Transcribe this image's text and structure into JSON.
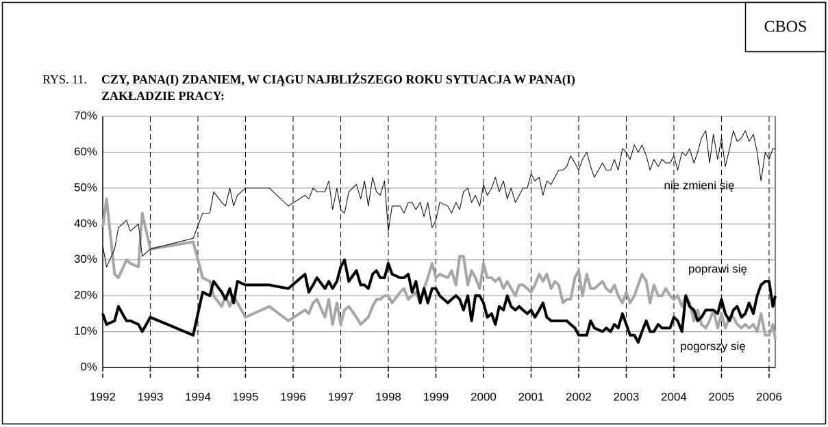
{
  "header": "CBOS",
  "chart_data": {
    "type": "line",
    "figure_label": "RYS. 11.",
    "title": [
      "CZY, PANA(I) ZDANIEM, W CIĄGU NAJBLIŻSZEGO ROKU SYTUACJA W PANA(I)",
      "ZAKŁADZIE PRACY:"
    ],
    "x": [
      1992,
      1992.08,
      1992.25,
      1992.33,
      1992.5,
      1992.58,
      1992.75,
      1992.83,
      1993,
      1993.9,
      1994.1,
      1994.25,
      1994.33,
      1994.5,
      1994.58,
      1994.67,
      1994.75,
      1994.83,
      1995,
      1995.5,
      1995.9,
      1996.25,
      1996.33,
      1996.42,
      1996.5,
      1996.67,
      1996.75,
      1996.83,
      1996.92,
      1997,
      1997.08,
      1997.17,
      1997.33,
      1997.42,
      1997.5,
      1997.58,
      1997.67,
      1997.75,
      1997.83,
      1997.92,
      1998,
      1998.08,
      1998.25,
      1998.33,
      1998.42,
      1998.5,
      1998.58,
      1998.67,
      1998.75,
      1998.83,
      1998.92,
      1999,
      1999.08,
      1999.25,
      1999.33,
      1999.42,
      1999.5,
      1999.58,
      1999.67,
      1999.75,
      1999.83,
      1999.92,
      2000,
      2000.08,
      2000.17,
      2000.25,
      2000.33,
      2000.42,
      2000.5,
      2000.58,
      2000.67,
      2000.75,
      2000.83,
      2000.92,
      2001,
      2001.08,
      2001.17,
      2001.25,
      2001.33,
      2001.42,
      2001.5,
      2001.58,
      2001.67,
      2001.75,
      2001.83,
      2001.92,
      2002,
      2002.08,
      2002.17,
      2002.25,
      2002.33,
      2002.5,
      2002.58,
      2002.67,
      2002.75,
      2002.83,
      2002.92,
      2003,
      2003.08,
      2003.17,
      2003.25,
      2003.33,
      2003.42,
      2003.5,
      2003.58,
      2003.67,
      2003.75,
      2003.83,
      2003.92,
      2004,
      2004.08,
      2004.17,
      2004.25,
      2004.33,
      2004.42,
      2004.5,
      2004.58,
      2004.67,
      2004.75,
      2004.83,
      2004.92,
      2005,
      2005.08,
      2005.17,
      2005.25,
      2005.33,
      2005.42,
      2005.5,
      2005.58,
      2005.67,
      2005.75,
      2005.83,
      2005.92,
      2006,
      2006.08,
      2006.13
    ],
    "series": [
      {
        "name": "nie zmieni się",
        "color": "#000000",
        "width": 1,
        "values": [
          34,
          28,
          33,
          39,
          41,
          38,
          40,
          31,
          33,
          36,
          43,
          43,
          49,
          46,
          45,
          50,
          45,
          48,
          50,
          50,
          45,
          48,
          47,
          50,
          49,
          49,
          52,
          44,
          50,
          44,
          43,
          49,
          51,
          47,
          52,
          45,
          53,
          49,
          48,
          52,
          38,
          45,
          45,
          43,
          46,
          46,
          44,
          46,
          42,
          46,
          39,
          41,
          46,
          45,
          43,
          46,
          44,
          49,
          50,
          46,
          48,
          45,
          51,
          48,
          50,
          53,
          49,
          52,
          47,
          50,
          46,
          48,
          50,
          50,
          54,
          52,
          53,
          48,
          52,
          51,
          53,
          55,
          55,
          56,
          59,
          57,
          55,
          58,
          60,
          56,
          53,
          57,
          55,
          55,
          58,
          55,
          61,
          60,
          58,
          62,
          60,
          62,
          59,
          55,
          58,
          56,
          58,
          57,
          57,
          59,
          55,
          60,
          59,
          61,
          57,
          60,
          64,
          66,
          57,
          65,
          58,
          64,
          56,
          61,
          66,
          63,
          64,
          66,
          63,
          65,
          60,
          52,
          60,
          58,
          61,
          61
        ]
      },
      {
        "name": "poprawi się",
        "color": "#a6a6a6",
        "width": 4,
        "values": [
          39,
          47,
          26,
          25,
          30,
          29,
          28,
          43,
          33,
          35,
          25,
          24,
          20,
          17,
          20,
          17,
          20,
          18,
          14,
          17,
          13,
          16,
          15,
          18,
          19,
          14,
          19,
          12,
          18,
          12,
          16,
          17,
          14,
          12,
          13,
          14,
          17,
          19,
          19,
          20,
          20,
          18,
          21,
          22,
          19,
          20,
          21,
          18,
          22,
          25,
          29,
          25,
          26,
          25,
          27,
          23,
          31,
          31,
          23,
          27,
          25,
          22,
          29,
          25,
          25,
          24,
          25,
          22,
          24,
          22,
          20,
          23,
          23,
          22,
          21,
          23,
          26,
          24,
          26,
          22,
          24,
          23,
          18,
          19,
          19,
          25,
          27,
          20,
          26,
          22,
          22,
          24,
          22,
          21,
          23,
          20,
          18,
          21,
          18,
          20,
          23,
          26,
          24,
          18,
          23,
          20,
          20,
          22,
          20,
          19,
          20,
          17,
          20,
          18,
          13,
          16,
          12,
          11,
          13,
          16,
          11,
          15,
          11,
          14,
          14,
          12,
          11,
          12,
          11,
          12,
          10,
          15,
          9,
          9,
          12,
          8
        ]
      },
      {
        "name": "pogorszy się",
        "color": "#000000",
        "width": 4,
        "values": [
          15,
          12,
          13,
          17,
          13,
          13,
          12,
          10,
          14,
          9,
          21,
          20,
          24,
          21,
          19,
          22,
          18,
          24,
          23,
          23,
          22,
          26,
          21,
          23,
          25,
          22,
          24,
          22,
          24,
          28,
          30,
          24,
          27,
          23,
          23,
          22,
          26,
          27,
          25,
          25,
          29,
          26,
          25,
          25,
          26,
          21,
          24,
          18,
          22,
          18,
          22,
          22,
          20,
          18,
          19,
          20,
          19,
          16,
          20,
          13,
          20,
          20,
          18,
          14,
          15,
          12,
          17,
          16,
          20,
          17,
          16,
          17,
          16,
          15,
          16,
          14,
          16,
          18,
          14,
          13,
          13,
          13,
          13,
          13,
          12,
          11,
          9,
          9,
          9,
          13,
          11,
          10,
          11,
          10,
          12,
          11,
          15,
          12,
          9,
          9,
          7,
          10,
          13,
          10,
          10,
          12,
          11,
          11,
          11,
          14,
          13,
          10,
          20,
          17,
          16,
          13,
          14,
          16,
          16,
          16,
          15,
          19,
          15,
          13,
          16,
          17,
          14,
          15,
          18,
          15,
          20,
          23,
          24,
          24,
          17,
          20
        ]
      }
    ],
    "xlim": [
      1992,
      2006.13
    ],
    "xticks": [
      1992,
      1993,
      1994,
      1995,
      1996,
      1997,
      1998,
      1999,
      2000,
      2001,
      2002,
      2003,
      2004,
      2005,
      2006
    ],
    "ylim": [
      0,
      70
    ],
    "yticks": [
      {
        "value": 0,
        "label": "0%"
      },
      {
        "value": 10,
        "label": "10%"
      },
      {
        "value": 20,
        "label": "20%"
      },
      {
        "value": 30,
        "label": "30%"
      },
      {
        "value": 40,
        "label": "40%"
      },
      {
        "value": 50,
        "label": "50%"
      },
      {
        "value": 60,
        "label": "60%"
      },
      {
        "value": 70,
        "label": "70%"
      }
    ],
    "grid": true
  }
}
